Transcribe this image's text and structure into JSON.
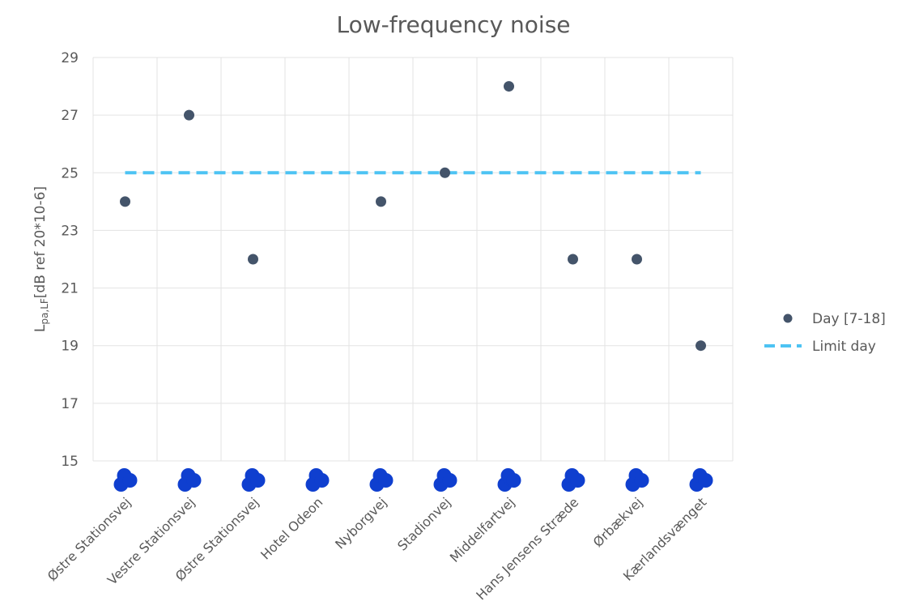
{
  "chart_data": {
    "type": "scatter",
    "title": "Low-frequency noise",
    "ylabel_main": "L",
    "ylabel_sub": "pa,LF",
    "ylabel_rest": "[dB ref 20*10-6]",
    "ylim": [
      15,
      29
    ],
    "yticks": [
      15,
      17,
      19,
      21,
      23,
      25,
      27,
      29
    ],
    "categories": [
      "Østre Stationsvej",
      "Vestre Stationsvej",
      "Østre Stationsvej",
      "Hotel Odeon",
      "Nyborgvej",
      "Stadionvej",
      "Middelfartvej",
      "Hans Jensens Stræde",
      "Ørbækvej",
      "Kærlandsvænget"
    ],
    "series": [
      {
        "name": "Day [7-18]",
        "kind": "points",
        "color": "#44546a",
        "values": [
          24,
          27,
          22,
          null,
          24,
          25,
          28,
          22,
          22,
          19
        ]
      },
      {
        "name": "Limit day",
        "kind": "dashed-line",
        "color": "#4dc3f3",
        "value": 25
      }
    ],
    "legend_position": "right",
    "grid": true,
    "category_marker_color": "#0f3fcf"
  }
}
